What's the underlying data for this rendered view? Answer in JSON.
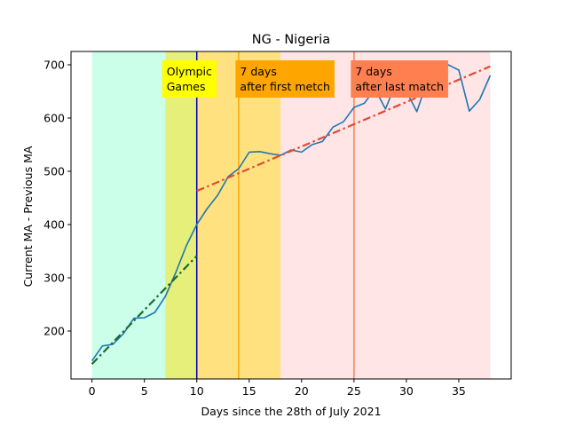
{
  "chart_data": {
    "type": "line",
    "title": "NG - Nigeria",
    "xlabel": "Days since the 28th of July 2021",
    "ylabel": "Current MA - Previous MA",
    "xlim": [
      -2,
      40
    ],
    "ylim": [
      110,
      725
    ],
    "xticks": [
      0,
      5,
      10,
      15,
      20,
      25,
      30,
      35
    ],
    "yticks": [
      200,
      300,
      400,
      500,
      600,
      700
    ],
    "grid": false,
    "bands": [
      {
        "x0": 0,
        "x1": 7,
        "color": "#ccffe9"
      },
      {
        "x0": 7,
        "x1": 10,
        "color": "#e5ef7a"
      },
      {
        "x0": 10,
        "x1": 18,
        "color": "#ffe27f"
      },
      {
        "x0": 18,
        "x1": 38,
        "color": "#ffe5e5"
      }
    ],
    "vlines": [
      {
        "x": 10,
        "color": "#0000b3"
      },
      {
        "x": 14,
        "color": "#ffa500"
      },
      {
        "x": 25,
        "color": "#ff7f50"
      }
    ],
    "annotations": [
      {
        "lines": [
          "Olympic",
          "Games"
        ],
        "x": 6.7,
        "bg": "#ffff00"
      },
      {
        "lines": [
          "7 days",
          "after first metch"
        ],
        "x": 13.7,
        "bg": "#ffa500"
      },
      {
        "lines": [
          "7 days",
          "after last match"
        ],
        "x": 24.7,
        "bg": "#ff7f50"
      }
    ],
    "series": [
      {
        "color": "#1f77b4",
        "style": "solid",
        "x": [
          0,
          1,
          2,
          3,
          4,
          5,
          6,
          7,
          8,
          9,
          10,
          11,
          12,
          13,
          14,
          15,
          16,
          17,
          18,
          19,
          20,
          21,
          22,
          23,
          24,
          25,
          26,
          27,
          28,
          29,
          30,
          31,
          32,
          33,
          34,
          35,
          36,
          37,
          38
        ],
        "y": [
          144,
          172,
          175,
          195,
          224,
          225,
          235,
          265,
          310,
          360,
          400,
          430,
          455,
          490,
          505,
          536,
          537,
          533,
          530,
          540,
          536,
          550,
          556,
          583,
          593,
          620,
          628,
          655,
          617,
          665,
          650,
          612,
          670,
          680,
          700,
          690,
          613,
          635,
          680
        ]
      },
      {
        "color": "#1a6b2e",
        "style": "dashdot",
        "x": [
          0,
          10
        ],
        "y": [
          138,
          341
        ]
      },
      {
        "color": "#e24a33",
        "style": "dashdot",
        "x": [
          10,
          38
        ],
        "y": [
          463,
          697
        ]
      }
    ]
  }
}
